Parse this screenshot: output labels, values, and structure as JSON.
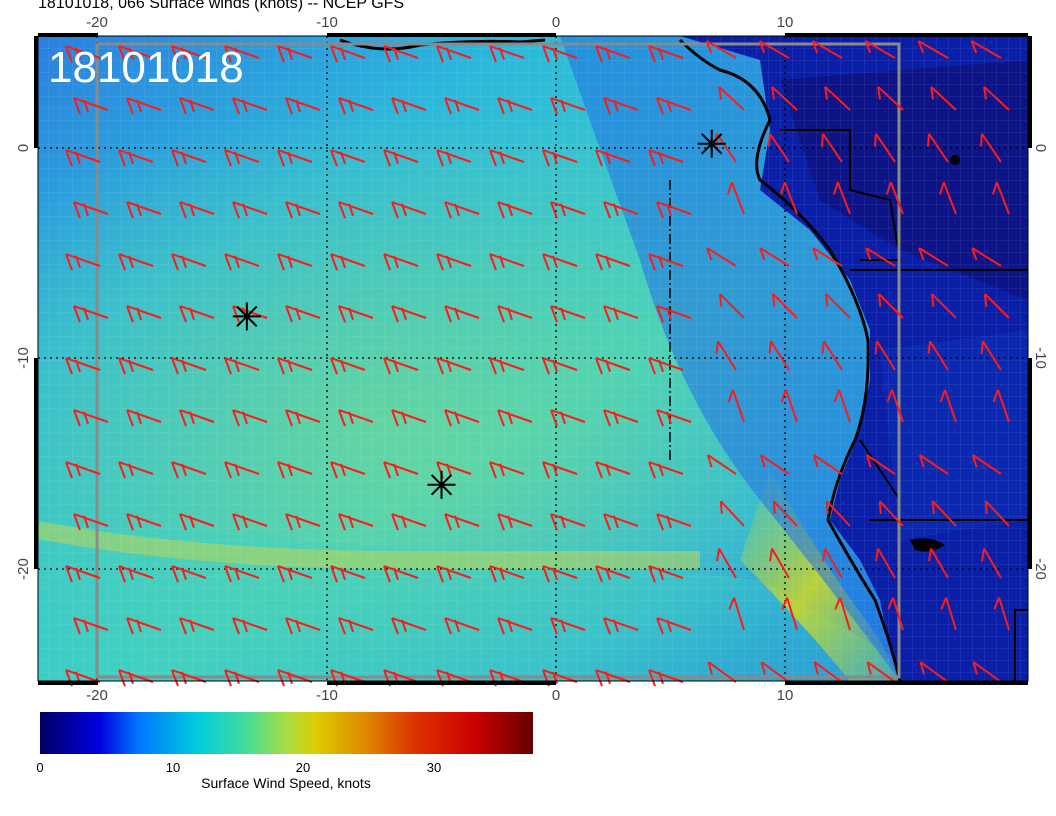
{
  "header": {
    "title": "18101018, 066 Surface winds (knots) -- NCEP GFS"
  },
  "map": {
    "stamp": "18101018",
    "lon_ticks": [
      "-20",
      "-10",
      "0",
      "10"
    ],
    "lat_ticks": [
      "0",
      "-10",
      "-20"
    ],
    "storm_markers": [
      {
        "lon": -13.5,
        "lat": -8
      },
      {
        "lon": -5,
        "lat": -16
      },
      {
        "lon": 6.8,
        "lat": 0.2
      }
    ],
    "colors": {
      "barb": "#ff1a1a",
      "land": "#0a1a8c",
      "ocean_mid": "#33ccd6",
      "grid": "#000000"
    }
  },
  "colorbar": {
    "ticks": [
      "0",
      "10",
      "20",
      "30"
    ],
    "label": "Surface Wind Speed, knots",
    "range": [
      0,
      37
    ]
  }
}
